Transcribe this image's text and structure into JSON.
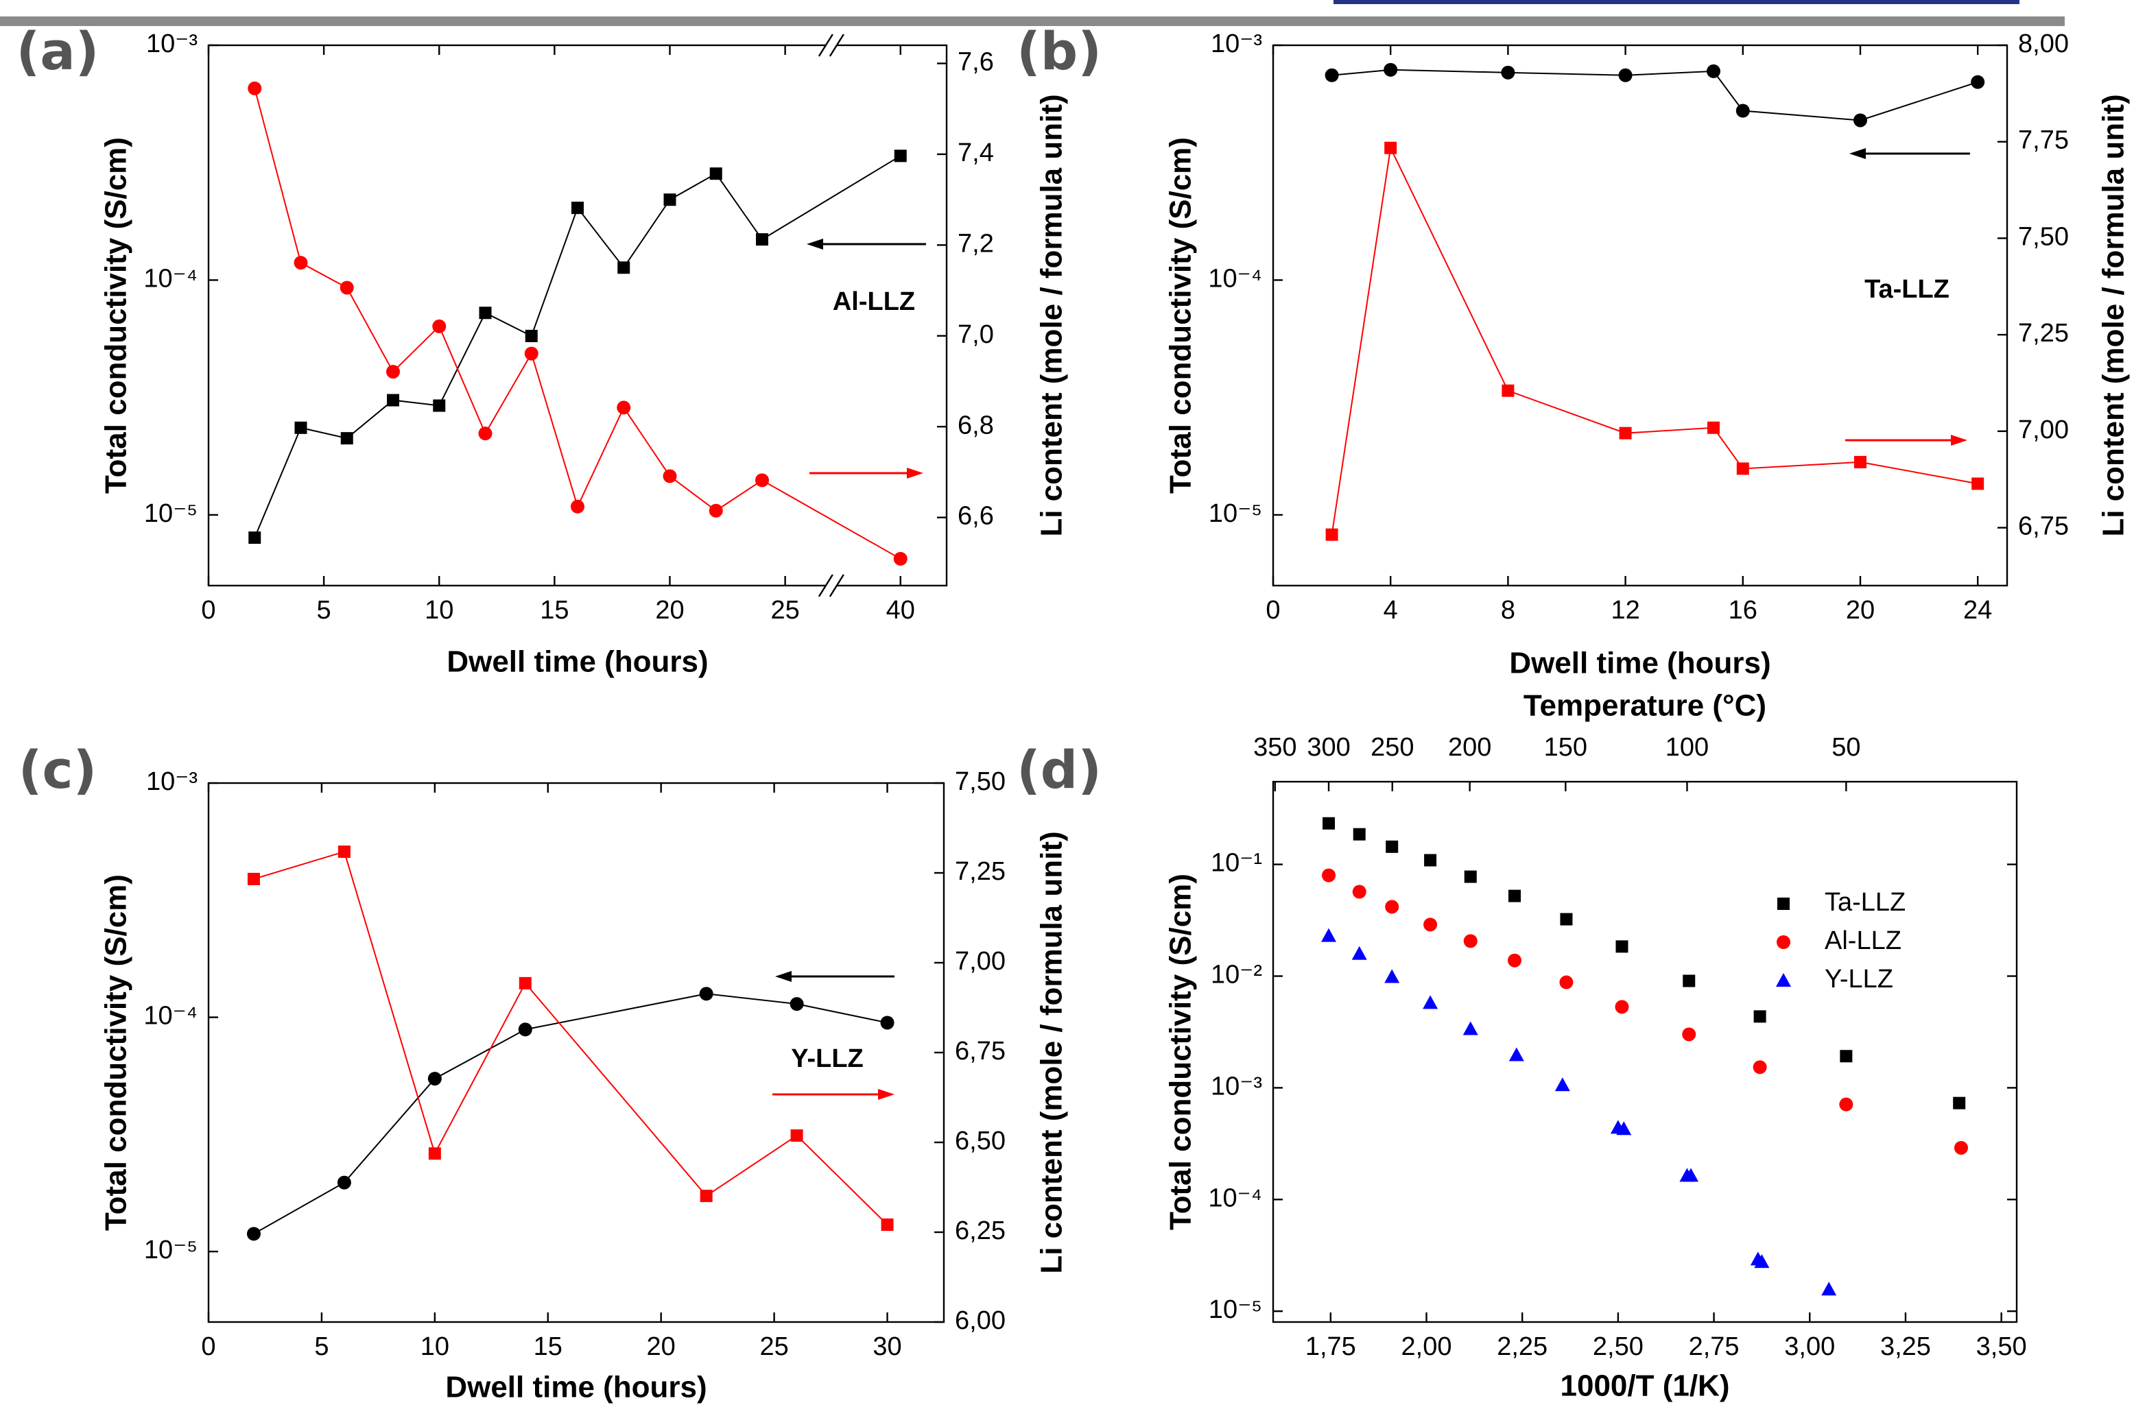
{
  "chart_data": [
    {
      "type": "line",
      "panel_label": "(a)",
      "annotation": "Al-LLZ",
      "x_label": "Dwell time (hours)",
      "y_label": "Total conductivity (S/cm)",
      "y2_label": "Li content (mole / formula unit)",
      "xlim": [
        0,
        42
      ],
      "x_break": [
        27,
        37
      ],
      "xticks": [
        0,
        5,
        10,
        15,
        20,
        25,
        40
      ],
      "ylim": [
        5e-06,
        0.001
      ],
      "y_log": true,
      "yticks": [
        {
          "value": 0.001,
          "label": "10⁻³"
        },
        {
          "value": 0.0001,
          "label": "10⁻⁴"
        },
        {
          "value": 1e-05,
          "label": "10⁻⁵"
        }
      ],
      "y2lim": [
        6.45,
        7.64
      ],
      "y2ticks": [
        {
          "value": 6.6,
          "label": "6,6"
        },
        {
          "value": 6.8,
          "label": "6,8"
        },
        {
          "value": 7.0,
          "label": "7,0"
        },
        {
          "value": 7.2,
          "label": "7,2"
        },
        {
          "value": 7.4,
          "label": "7,4"
        },
        {
          "value": 7.6,
          "label": "7,6"
        }
      ],
      "series": [
        {
          "color": "#000000",
          "marker": "square",
          "x": [
            2,
            4,
            6,
            8,
            10,
            12,
            14,
            16,
            18,
            20,
            22,
            24,
            40
          ],
          "values": [
            8e-06,
            2.35e-05,
            2.12e-05,
            3.08e-05,
            2.92e-05,
            7.25e-05,
            5.78e-05,
            0.000203,
            0.000113,
            0.00022,
            0.000284,
            0.000149,
            0.000338
          ]
        },
        {
          "color": "#ff0000",
          "marker": "circle",
          "axis": "y2",
          "x": [
            2,
            4,
            6,
            8,
            10,
            12,
            14,
            16,
            18,
            20,
            22,
            24,
            40
          ],
          "values": [
            7.545,
            7.161,
            7.106,
            6.921,
            7.021,
            6.785,
            6.961,
            6.624,
            6.842,
            6.691,
            6.615,
            6.682,
            6.509
          ]
        }
      ]
    },
    {
      "type": "line",
      "panel_label": "(b)",
      "annotation": "Ta-LLZ",
      "x_label": "Dwell time (hours)",
      "y_label": "Total conductivity (S/cm)",
      "y2_label": "Li content (mole / formula unit)",
      "xlim": [
        0,
        25
      ],
      "xticks": [
        0,
        4,
        8,
        12,
        16,
        20,
        24
      ],
      "ylim": [
        5e-06,
        0.001
      ],
      "y_log": true,
      "yticks": [
        {
          "value": 0.001,
          "label": "10⁻³"
        },
        {
          "value": 0.0001,
          "label": "10⁻⁴"
        },
        {
          "value": 1e-05,
          "label": "10⁻⁵"
        }
      ],
      "y2lim": [
        6.6,
        8.0
      ],
      "y2ticks": [
        {
          "value": 6.75,
          "label": "6,75"
        },
        {
          "value": 7.0,
          "label": "7,00"
        },
        {
          "value": 7.25,
          "label": "7,25"
        },
        {
          "value": 7.5,
          "label": "7,50"
        },
        {
          "value": 7.75,
          "label": "7,75"
        },
        {
          "value": 8.0,
          "label": "8,00"
        }
      ],
      "series": [
        {
          "color": "#000000",
          "marker": "circle",
          "x": [
            2,
            4,
            8,
            12,
            15,
            16,
            20,
            24
          ],
          "values": [
            0.000745,
            0.000786,
            0.000765,
            0.000745,
            0.000775,
            0.000526,
            0.000479,
            0.000697
          ]
        },
        {
          "color": "#ff0000",
          "marker": "square",
          "axis": "y2",
          "x": [
            2,
            4,
            8,
            12,
            15,
            16,
            20,
            24
          ],
          "values": [
            6.732,
            7.734,
            7.105,
            6.995,
            7.009,
            6.903,
            6.92,
            6.864
          ]
        }
      ]
    },
    {
      "type": "line",
      "panel_label": "(c)",
      "annotation": "Y-LLZ",
      "x_label": "Dwell time (hours)",
      "y_label": "Total conductivity (S/cm)",
      "y2_label": "Li content (mole / formula unit)",
      "xlim": [
        0,
        32.5
      ],
      "xticks": [
        0,
        5,
        10,
        15,
        20,
        25,
        30
      ],
      "ylim": [
        5e-06,
        0.001
      ],
      "y_log": true,
      "yticks": [
        {
          "value": 0.001,
          "label": "10⁻³"
        },
        {
          "value": 0.0001,
          "label": "10⁻⁴"
        },
        {
          "value": 1e-05,
          "label": "10⁻⁵"
        }
      ],
      "y2lim": [
        6.0,
        7.5
      ],
      "y2ticks": [
        {
          "value": 6.0,
          "label": "6,00"
        },
        {
          "value": 6.25,
          "label": "6,25"
        },
        {
          "value": 6.5,
          "label": "6,50"
        },
        {
          "value": 6.75,
          "label": "6,75"
        },
        {
          "value": 7.0,
          "label": "7,00"
        },
        {
          "value": 7.25,
          "label": "7,25"
        },
        {
          "value": 7.5,
          "label": "7,50"
        }
      ],
      "series": [
        {
          "color": "#000000",
          "marker": "circle",
          "x": [
            2,
            6,
            10,
            14,
            22,
            26,
            30
          ],
          "values": [
            1.19e-05,
            1.97e-05,
            5.47e-05,
            8.87e-05,
            0.000126,
            0.000114,
            9.48e-05
          ]
        },
        {
          "color": "#ff0000",
          "marker": "square",
          "axis": "y2",
          "x": [
            2,
            6,
            10,
            14,
            22,
            26,
            30
          ],
          "values": [
            7.233,
            7.309,
            6.469,
            6.943,
            6.351,
            6.519,
            6.271
          ]
        }
      ]
    },
    {
      "type": "scatter",
      "panel_label": "(d)",
      "x_label": "1000/T (1/K)",
      "x2_label": "Temperature (°C)",
      "y_label": "Total conductivity (S/cm)",
      "xlim": [
        1.6,
        3.54
      ],
      "xticks": [
        {
          "value": 1.75,
          "label": "1,75"
        },
        {
          "value": 2.0,
          "label": "2,00"
        },
        {
          "value": 2.25,
          "label": "2,25"
        },
        {
          "value": 2.5,
          "label": "2,50"
        },
        {
          "value": 2.75,
          "label": "2,75"
        },
        {
          "value": 3.0,
          "label": "3,00"
        },
        {
          "value": 3.25,
          "label": "3,25"
        },
        {
          "value": 3.5,
          "label": "3,50"
        }
      ],
      "x2ticks": [
        {
          "value": 1.605,
          "label": "350"
        },
        {
          "value": 1.745,
          "label": "300"
        },
        {
          "value": 1.911,
          "label": "250"
        },
        {
          "value": 2.113,
          "label": "200"
        },
        {
          "value": 2.363,
          "label": "150"
        },
        {
          "value": 2.68,
          "label": "100"
        },
        {
          "value": 3.095,
          "label": "50"
        }
      ],
      "ylim": [
        8e-06,
        0.55
      ],
      "y_log": true,
      "yticks": [
        {
          "value": 0.1,
          "label": "10⁻¹"
        },
        {
          "value": 0.01,
          "label": "10⁻²"
        },
        {
          "value": 0.001,
          "label": "10⁻³"
        },
        {
          "value": 0.0001,
          "label": "10⁻⁴"
        },
        {
          "value": 1e-05,
          "label": "10⁻⁵"
        }
      ],
      "legend": "right",
      "series": [
        {
          "name": "Ta-LLZ",
          "color": "#000000",
          "marker": "square",
          "x": [
            1.745,
            1.825,
            1.91,
            2.01,
            2.115,
            2.23,
            2.365,
            2.51,
            2.685,
            2.87,
            3.095,
            3.39
          ],
          "values": [
            0.233,
            0.186,
            0.144,
            0.109,
            0.0776,
            0.0522,
            0.0323,
            0.0184,
            0.00906,
            0.00435,
            0.00192,
            0.00073
          ]
        },
        {
          "name": "Al-LLZ",
          "color": "#ff0000",
          "marker": "circle",
          "x": [
            1.745,
            1.825,
            1.91,
            2.01,
            2.115,
            2.23,
            2.365,
            2.51,
            2.685,
            2.87,
            3.095,
            3.395
          ],
          "values": [
            0.0798,
            0.0569,
            0.0417,
            0.0289,
            0.0206,
            0.0138,
            0.0088,
            0.0053,
            0.00301,
            0.00153,
            0.00071,
            0.00029
          ]
        },
        {
          "name": "Y-LLZ",
          "color": "#0000ff",
          "marker": "triangle",
          "x": [
            1.745,
            1.825,
            1.91,
            2.01,
            2.115,
            2.235,
            2.355,
            2.5,
            2.515,
            2.68,
            2.69,
            2.865,
            2.875,
            3.05
          ],
          "values": [
            0.023,
            0.0159,
            0.00986,
            0.00577,
            0.00337,
            0.00197,
            0.00106,
            0.000441,
            0.000429,
            0.000164,
            0.000164,
            2.92e-05,
            2.77e-05,
            1.57e-05
          ]
        }
      ]
    }
  ]
}
